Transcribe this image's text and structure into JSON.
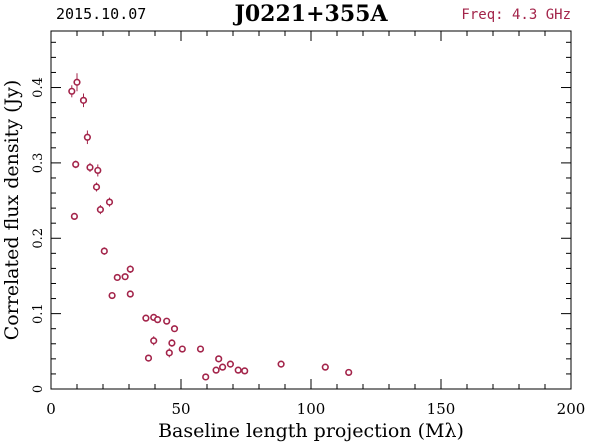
{
  "header": {
    "date": "2015.10.07",
    "source": "J0221+355A",
    "freq": "Freq: 4.3 GHz"
  },
  "colors": {
    "marker": "#a3244a",
    "axis": "#000000"
  },
  "chart_data": {
    "type": "scatter",
    "title": "J0221+355A",
    "xlabel": "Baseline length projection (Mλ)",
    "ylabel": "Correlated flux density (Jy)",
    "xlim": [
      0,
      200
    ],
    "ylim": [
      0,
      0.475
    ],
    "xticks": [
      0,
      50,
      100,
      150,
      200
    ],
    "yticks": [
      0,
      0.1,
      0.2,
      0.3,
      0.4
    ],
    "xtick_labels": [
      "0",
      "50",
      "100",
      "150",
      "200"
    ],
    "ytick_labels": [
      "0",
      "0.1",
      "0.2",
      "0.3",
      "0.4"
    ],
    "grid": false,
    "points": [
      {
        "x": 8.0,
        "y": 0.395,
        "err": 0.008
      },
      {
        "x": 10.0,
        "y": 0.407,
        "err": 0.012
      },
      {
        "x": 12.5,
        "y": 0.383,
        "err": 0.009
      },
      {
        "x": 14.0,
        "y": 0.334,
        "err": 0.009
      },
      {
        "x": 9.5,
        "y": 0.298,
        "err": 0.005
      },
      {
        "x": 15.0,
        "y": 0.294,
        "err": 0.006
      },
      {
        "x": 18.0,
        "y": 0.29,
        "err": 0.008
      },
      {
        "x": 17.5,
        "y": 0.268,
        "err": 0.006
      },
      {
        "x": 22.5,
        "y": 0.248,
        "err": 0.006
      },
      {
        "x": 19.0,
        "y": 0.238,
        "err": 0.006
      },
      {
        "x": 9.0,
        "y": 0.229,
        "err": 0.004
      },
      {
        "x": 20.5,
        "y": 0.183,
        "err": 0.005
      },
      {
        "x": 30.5,
        "y": 0.159,
        "err": 0.005
      },
      {
        "x": 25.5,
        "y": 0.148,
        "err": 0.004
      },
      {
        "x": 28.5,
        "y": 0.149,
        "err": 0.004
      },
      {
        "x": 30.5,
        "y": 0.126,
        "err": 0.004
      },
      {
        "x": 23.5,
        "y": 0.124,
        "err": 0.004
      },
      {
        "x": 36.5,
        "y": 0.094,
        "err": 0.004
      },
      {
        "x": 39.5,
        "y": 0.095,
        "err": 0.004
      },
      {
        "x": 41.0,
        "y": 0.092,
        "err": 0.004
      },
      {
        "x": 44.5,
        "y": 0.09,
        "err": 0.004
      },
      {
        "x": 47.5,
        "y": 0.08,
        "err": 0.004
      },
      {
        "x": 39.5,
        "y": 0.064,
        "err": 0.006
      },
      {
        "x": 46.5,
        "y": 0.061,
        "err": 0.005
      },
      {
        "x": 50.5,
        "y": 0.053,
        "err": 0.004
      },
      {
        "x": 57.5,
        "y": 0.053,
        "err": 0.004
      },
      {
        "x": 45.5,
        "y": 0.048,
        "err": 0.006
      },
      {
        "x": 37.5,
        "y": 0.041,
        "err": 0.004
      },
      {
        "x": 64.5,
        "y": 0.04,
        "err": 0.004
      },
      {
        "x": 69.0,
        "y": 0.033,
        "err": 0.004
      },
      {
        "x": 66.0,
        "y": 0.029,
        "err": 0.004
      },
      {
        "x": 88.5,
        "y": 0.033,
        "err": 0.004
      },
      {
        "x": 105.5,
        "y": 0.029,
        "err": 0.004
      },
      {
        "x": 63.5,
        "y": 0.025,
        "err": 0.004
      },
      {
        "x": 72.0,
        "y": 0.025,
        "err": 0.004
      },
      {
        "x": 74.5,
        "y": 0.024,
        "err": 0.003
      },
      {
        "x": 114.5,
        "y": 0.022,
        "err": 0.004
      },
      {
        "x": 59.5,
        "y": 0.016,
        "err": 0.004
      }
    ]
  }
}
